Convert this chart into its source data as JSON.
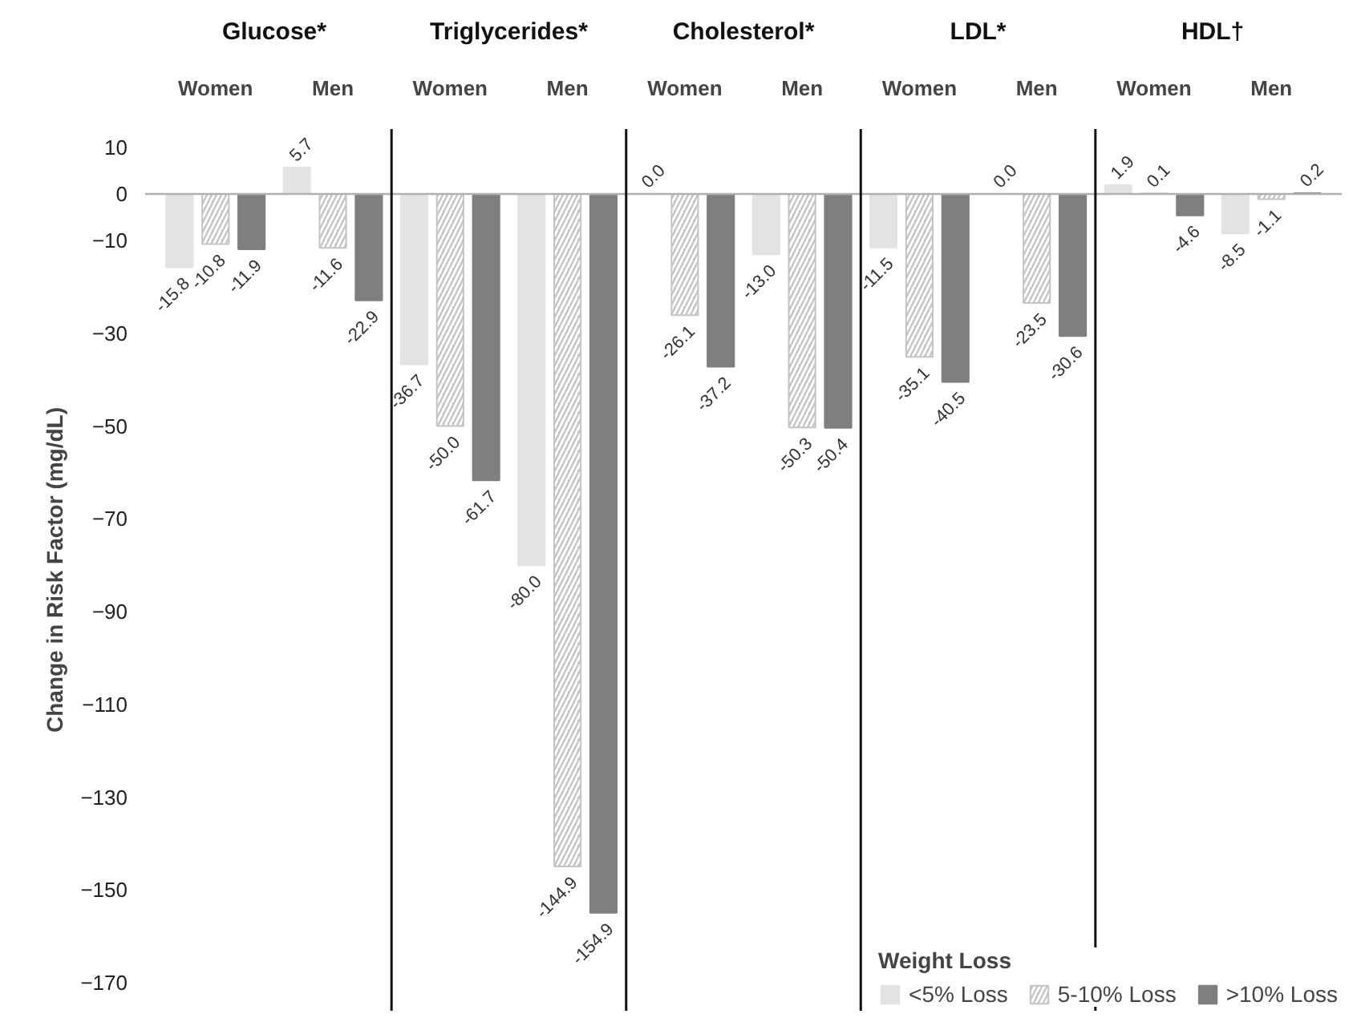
{
  "chart_data": {
    "type": "bar",
    "categories": [
      "Women",
      "Men",
      "Women",
      "Men",
      "Women",
      "Men",
      "Women",
      "Men",
      "Women",
      "Men"
    ],
    "annotations": [
      "Glucose*",
      "Triglycerides*",
      "Cholesterol*",
      "LDL*",
      "HDL†"
    ],
    "ylabel": "Change in Risk Factor (mg/dL)",
    "legend_title": "Weight Loss",
    "series": [
      {
        "name": "<5% Loss",
        "color": "#e3e3e3",
        "values": [
          -15.8,
          5.7,
          -36.7,
          -80.0,
          0.0,
          -13.0,
          -11.5,
          0.0,
          1.9,
          -8.5
        ],
        "value_labels": [
          "-15.8",
          "5.7",
          "-36.7",
          "-80.0",
          "0.0",
          "-13.0",
          "-11.5",
          "0.0",
          "1.9",
          "-8.5"
        ]
      },
      {
        "name": "5-10% Loss",
        "color": "#c4c4c4",
        "values": [
          -10.8,
          -11.6,
          -50.0,
          -144.9,
          -26.1,
          -50.3,
          -35.1,
          -23.5,
          0.1,
          -1.1
        ],
        "value_labels": [
          "-10.8",
          "-11.6",
          "-50.0",
          "-144.9",
          "-26.1",
          "-50.3",
          "-35.1",
          "-23.5",
          "0.1",
          "-1.1"
        ]
      },
      {
        "name": ">10% Loss",
        "color": "#7f7f7f",
        "values": [
          -11.9,
          -22.9,
          -61.7,
          -154.9,
          -37.2,
          -50.4,
          -40.5,
          -30.6,
          -4.6,
          0.2
        ],
        "value_labels": [
          "-11.9",
          "-22.9",
          "-61.7",
          "-154.9",
          "-37.2",
          "-50.4",
          "-40.5",
          "-30.6",
          "-4.6",
          "0.2"
        ]
      }
    ],
    "ylim": [
      -176,
      14
    ],
    "yticks": [
      10,
      0,
      -10,
      -30,
      -50,
      -70,
      -90,
      -110,
      -130,
      -150,
      -170
    ],
    "data_labels": true,
    "grid": false,
    "legend": "bottom right"
  }
}
